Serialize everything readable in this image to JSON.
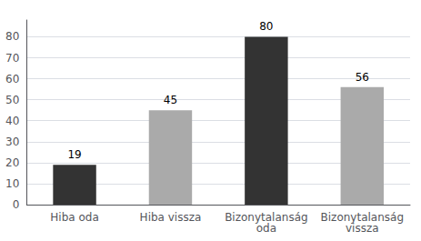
{
  "chart_data": {
    "type": "bar",
    "categories": [
      "Hiba oda",
      "Hiba vissza",
      "Bizonytalanság\noda",
      "Bizonytalanság\nvissza"
    ],
    "values": [
      19,
      45,
      80,
      56
    ],
    "colors": [
      "#333333",
      "#aaaaaa",
      "#333333",
      "#aaaaaa"
    ],
    "ylim": [
      0,
      88
    ],
    "yticks": [
      0,
      10,
      20,
      30,
      40,
      50,
      60,
      70,
      80
    ],
    "grid": true,
    "data_labels": true
  }
}
